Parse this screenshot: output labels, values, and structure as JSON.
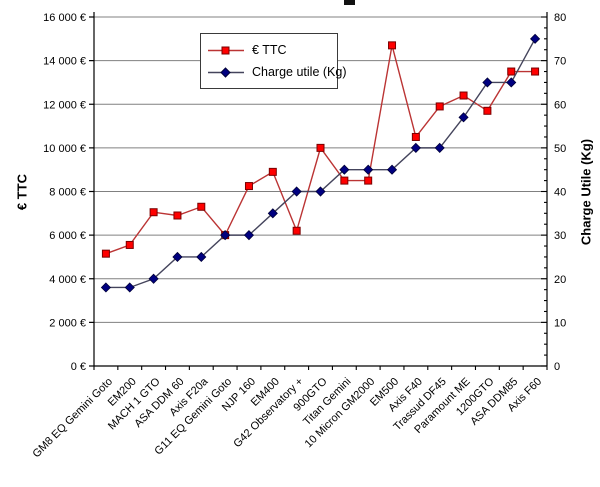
{
  "chart_data": {
    "type": "line",
    "title_cropped": true,
    "categories": [
      "GM8 EQ Gemini Goto",
      "EM200",
      "MACH 1 GTO",
      "ASA DDM 60",
      "Axis F20a",
      "G11 EQ Gemini Goto",
      "NJP 160",
      "EM400",
      "G42 Observatory +",
      "900GTO",
      "Titan Gemini",
      "10 Micron GM2000",
      "EM500",
      "Axis F40",
      "Trassud DF45",
      "Paramount ME",
      "1200GTO",
      "ASA DDM85",
      "Axis F60"
    ],
    "series": [
      {
        "name": "€ TTC",
        "axis": "left",
        "marker": "square",
        "line_color": "#bb3434",
        "marker_fill": "#ff0000",
        "marker_stroke": "#7a0000",
        "values": [
          5150,
          5550,
          7050,
          6900,
          7300,
          6000,
          8250,
          8900,
          6200,
          10000,
          8500,
          8500,
          14700,
          10500,
          11900,
          12400,
          11700,
          13500,
          13500
        ]
      },
      {
        "name": "Charge utile (Kg)",
        "axis": "right",
        "marker": "diamond",
        "line_color": "#44445c",
        "marker_fill": "#000080",
        "marker_stroke": "#000038",
        "values": [
          18,
          18,
          20,
          25,
          25,
          30,
          30,
          35,
          40,
          40,
          45,
          45,
          45,
          50,
          50,
          57,
          65,
          65,
          75
        ]
      }
    ],
    "left_axis": {
      "title": "€ TTC",
      "min": 0,
      "max": 16000,
      "step": 2000,
      "tick_labels": [
        "0 €",
        "2 000 €",
        "4 000 €",
        "6 000 €",
        "8 000 €",
        "10 000 €",
        "12 000 €",
        "14 000 €",
        "16 000 €"
      ]
    },
    "right_axis": {
      "title": "Charge Utile (Kg)",
      "min": 0,
      "max": 80,
      "step": 10,
      "minor_step": 2.5,
      "tick_labels": [
        "0",
        "10",
        "20",
        "30",
        "40",
        "50",
        "60",
        "70",
        "80"
      ]
    },
    "legend": {
      "position": "top-center",
      "entries": [
        "€ TTC",
        "Charge utile (Kg)"
      ]
    },
    "grid": true,
    "colors": {
      "grid": "#808080",
      "axis": "#000000",
      "background": "#ffffff",
      "tick_text": "#000000"
    }
  }
}
